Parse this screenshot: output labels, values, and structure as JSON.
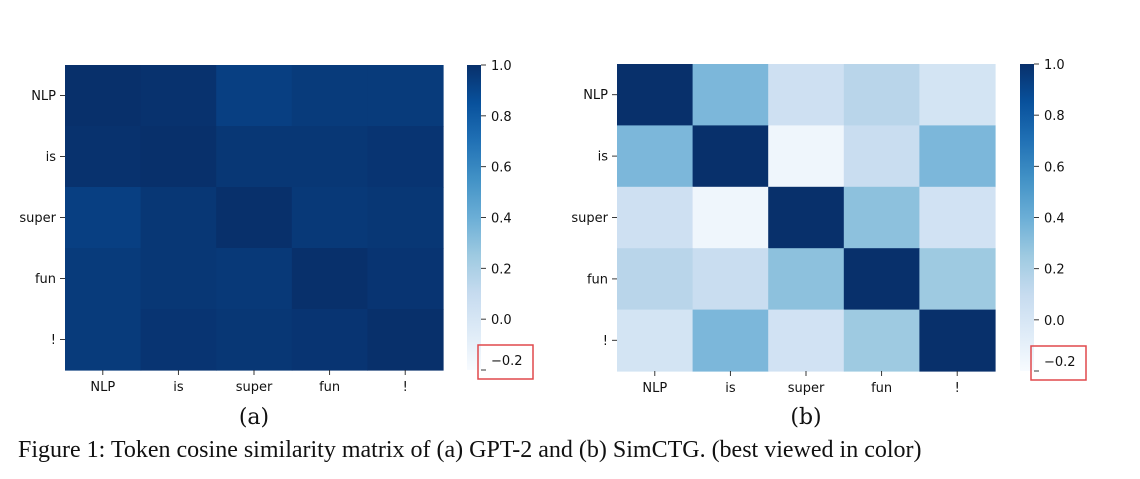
{
  "colors": {
    "highlight_box": "#e0494c",
    "text": "#111111"
  },
  "chart_data": [
    {
      "type": "heatmap",
      "title": "",
      "sublabel": "(a)",
      "x_categories": [
        "NLP",
        "is",
        "super",
        "fun",
        "!"
      ],
      "y_categories": [
        "NLP",
        "is",
        "super",
        "fun",
        "!"
      ],
      "values": [
        [
          1.0,
          0.99,
          0.93,
          0.95,
          0.95
        ],
        [
          0.99,
          1.0,
          0.97,
          0.97,
          0.98
        ],
        [
          0.93,
          0.97,
          1.0,
          0.96,
          0.97
        ],
        [
          0.95,
          0.97,
          0.96,
          1.0,
          0.98
        ],
        [
          0.95,
          0.98,
          0.97,
          0.98,
          1.0
        ]
      ],
      "colormap": "Blues",
      "vmin": -0.2,
      "vmax": 1.0,
      "colorbar_ticks": [
        "1.0",
        "0.8",
        "0.6",
        "0.4",
        "0.2",
        "0.0",
        "−0.2"
      ],
      "colorbar_tick_values": [
        1.0,
        0.8,
        0.6,
        0.4,
        0.2,
        0.0,
        -0.2
      ],
      "highlighted_tick": "−0.2"
    },
    {
      "type": "heatmap",
      "title": "",
      "sublabel": "(b)",
      "x_categories": [
        "NLP",
        "is",
        "super",
        "fun",
        "!"
      ],
      "y_categories": [
        "NLP",
        "is",
        "super",
        "fun",
        "!"
      ],
      "values": [
        [
          1.0,
          0.35,
          0.05,
          0.15,
          0.02
        ],
        [
          0.35,
          1.0,
          -0.15,
          0.08,
          0.35
        ],
        [
          0.05,
          -0.15,
          1.0,
          0.3,
          0.03
        ],
        [
          0.15,
          0.08,
          0.3,
          1.0,
          0.25
        ],
        [
          0.02,
          0.35,
          0.03,
          0.25,
          1.0
        ]
      ],
      "colormap": "Blues",
      "vmin": -0.2,
      "vmax": 1.0,
      "colorbar_ticks": [
        "1.0",
        "0.8",
        "0.6",
        "0.4",
        "0.2",
        "0.0",
        "−0.2"
      ],
      "colorbar_tick_values": [
        1.0,
        0.8,
        0.6,
        0.4,
        0.2,
        0.0,
        -0.2
      ],
      "highlighted_tick": "−0.2"
    }
  ],
  "caption": "Figure 1: Token cosine similarity matrix of (a) GPT-2 and (b) SimCTG. (best viewed in color)"
}
